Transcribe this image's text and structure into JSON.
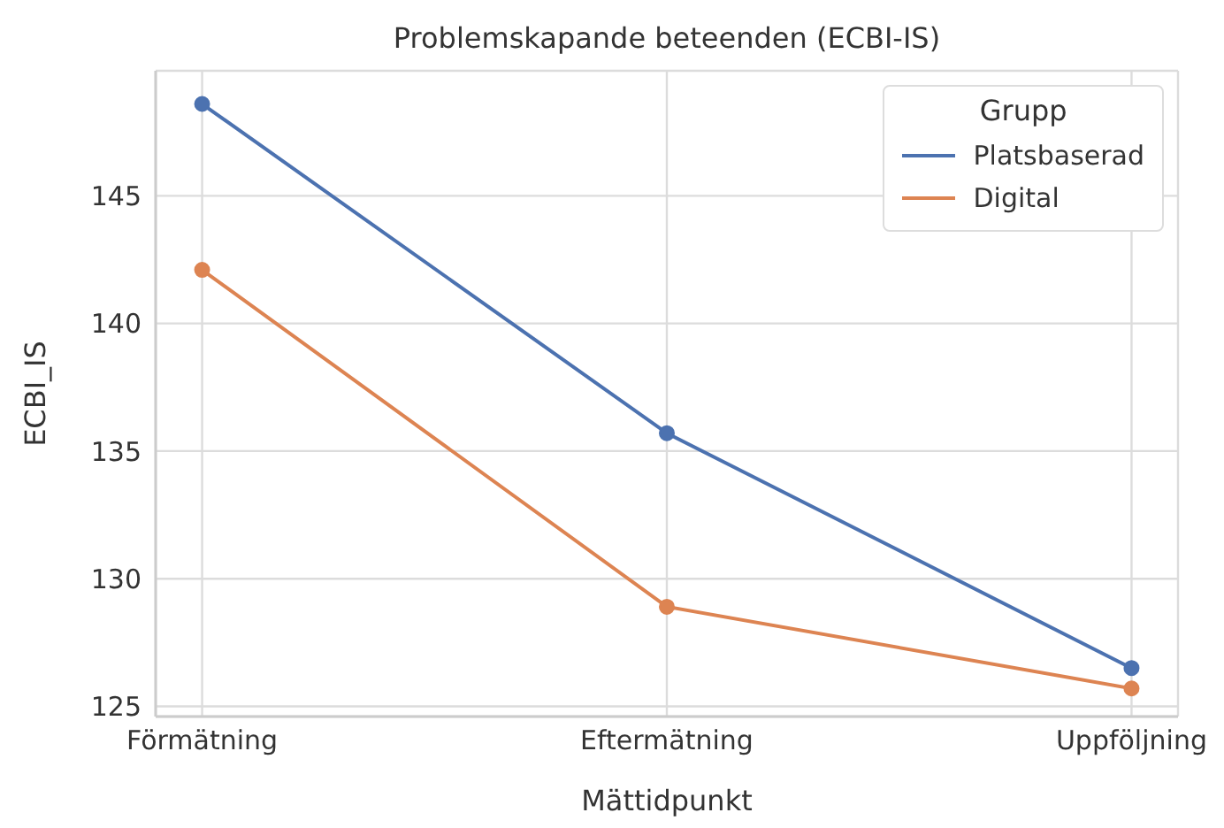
{
  "chart_data": {
    "type": "line",
    "title": "Problemskapande beteenden (ECBI-IS)",
    "xlabel": "Mättidpunkt",
    "ylabel": "ECBI_IS",
    "legend_title": "Grupp",
    "categories": [
      "Förmätning",
      "Eftermätning",
      "Uppföljning"
    ],
    "series": [
      {
        "name": "Platsbaserad",
        "color": "#4c72b0",
        "values": [
          148.6,
          135.7,
          126.5
        ]
      },
      {
        "name": "Digital",
        "color": "#dd8452",
        "values": [
          142.1,
          128.9,
          125.7
        ]
      }
    ],
    "ylim": [
      124.6,
      149.9
    ],
    "yticks": [
      125,
      130,
      135,
      140,
      145
    ],
    "grid": true,
    "legend": "top right",
    "marker": "circle",
    "line_style": "solid"
  }
}
